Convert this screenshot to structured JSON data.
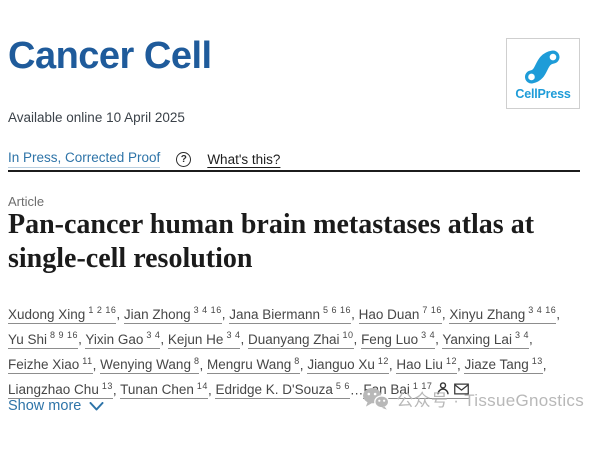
{
  "journal": {
    "name": "Cancer Cell",
    "publisher": "CellPress"
  },
  "meta": {
    "available_online": "Available online 10 April 2025",
    "status": "In Press, Corrected Proof",
    "whats_this": "What's this?",
    "help_icon_glyph": "?"
  },
  "article": {
    "type_label": "Article",
    "title": "Pan-cancer human brain metastases atlas at single-cell resolution",
    "title_lines": [
      "Pan-cancer human brain metastases atlas at",
      "single-cell resolution"
    ]
  },
  "authors": {
    "lines": [
      [
        {
          "name": "Xudong Xing",
          "sup": "1 2 16",
          "trail": ", "
        },
        {
          "name": "Jian Zhong",
          "sup": "3 4 16",
          "trail": ", "
        },
        {
          "name": "Jana Biermann",
          "sup": "5 6 16",
          "trail": ", "
        },
        {
          "name": "Hao Duan",
          "sup": "7 16",
          "trail": ", "
        },
        {
          "name": "Xinyu Zhang",
          "sup": "3 4 16",
          "trail": ","
        }
      ],
      [
        {
          "name": "Yu Shi",
          "sup": "8 9 16",
          "trail": ", "
        },
        {
          "name": "Yixin Gao",
          "sup": "3 4",
          "trail": ", "
        },
        {
          "name": "Kejun He",
          "sup": "3 4",
          "trail": ", "
        },
        {
          "name": "Duanyang Zhai",
          "sup": "10",
          "trail": ", "
        },
        {
          "name": "Feng Luo",
          "sup": "3 4",
          "trail": ", "
        },
        {
          "name": "Yanxing Lai",
          "sup": "3 4",
          "trail": ","
        }
      ],
      [
        {
          "name": "Feizhe Xiao",
          "sup": "11",
          "trail": ", "
        },
        {
          "name": "Wenying Wang",
          "sup": "8",
          "trail": ", "
        },
        {
          "name": "Mengru Wang",
          "sup": "8",
          "trail": ", "
        },
        {
          "name": "Jianguo Xu",
          "sup": "12",
          "trail": ", "
        },
        {
          "name": "Hao Liu",
          "sup": "12",
          "trail": ", "
        },
        {
          "name": "Jiaze Tang",
          "sup": "13",
          "trail": ","
        }
      ],
      [
        {
          "name": "Liangzhao Chu",
          "sup": "13",
          "trail": ", "
        },
        {
          "name": "Tunan Chen",
          "sup": "14",
          "trail": ", "
        },
        {
          "name": "Edridge K. D'Souza",
          "sup": "5 6",
          "trail": "…"
        },
        {
          "name": "Fan Bai",
          "sup": "1 17",
          "icons": [
            "person",
            "envelope"
          ],
          "trail": ""
        }
      ]
    ]
  },
  "show_more": {
    "label": "Show more"
  },
  "watermark": {
    "text": "公众号 · TissueGnostics"
  },
  "colors": {
    "journal_blue": "#1f5b9b",
    "cellpress_blue": "#1e9cd8",
    "link_blue": "#2e74a8",
    "title_text": "#1b1b1b",
    "body_text": "#474747",
    "muted_gray": "#6e6e6e",
    "watermark_gray": "#b8b8b8",
    "divider": "#1c1c1c"
  }
}
